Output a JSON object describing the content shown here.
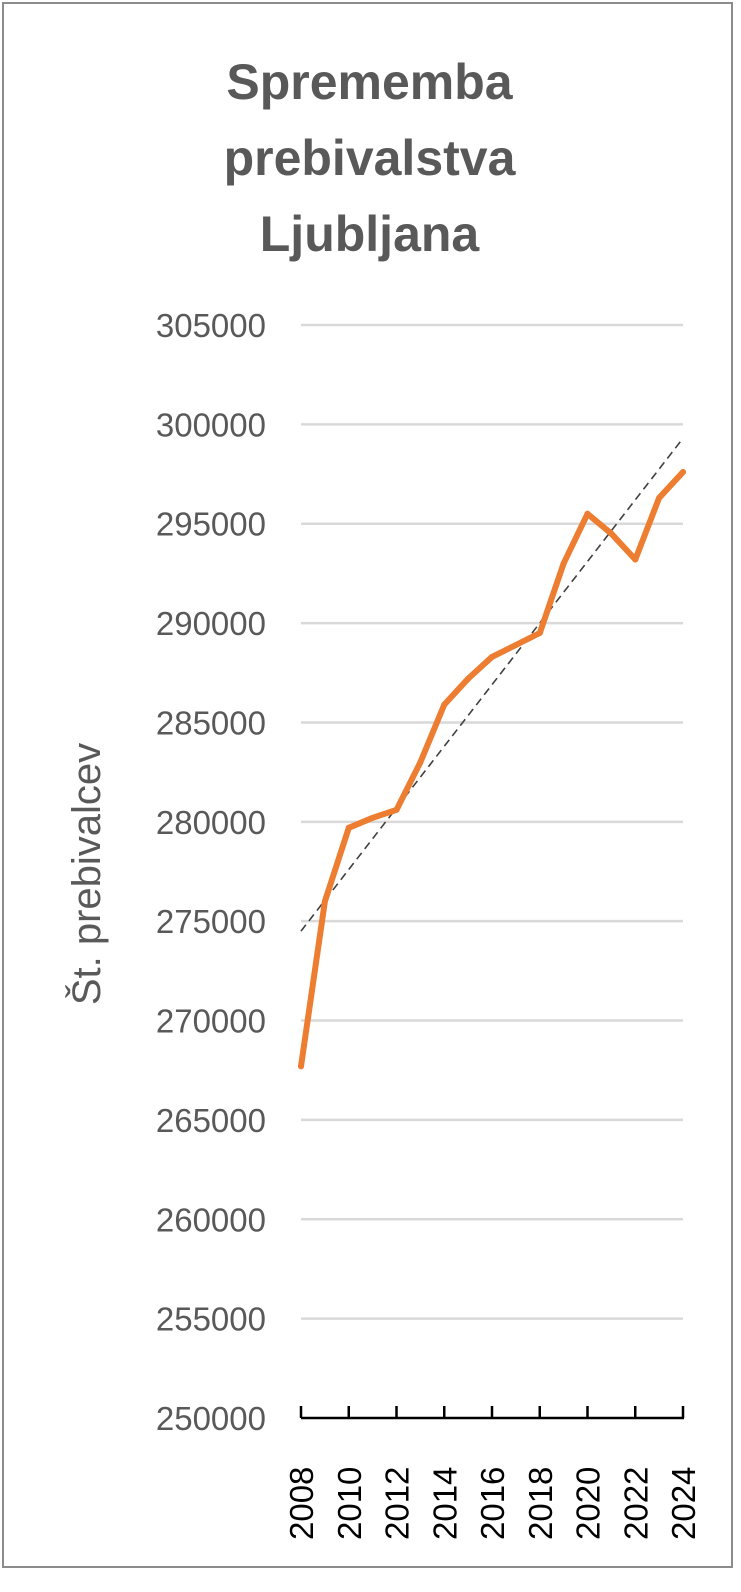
{
  "chart_data": {
    "type": "line",
    "title": "Sprememba\nprebivalstva\nLjubljana",
    "ylabel": "Št. prebivalcev",
    "xlabel": "",
    "ylim": [
      250000,
      305000
    ],
    "yticks": [
      "305000",
      "300000",
      "295000",
      "290000",
      "285000",
      "280000",
      "275000",
      "270000",
      "265000",
      "260000",
      "255000",
      "250000"
    ],
    "xlim": [
      2008,
      2024
    ],
    "xticks": [
      "2008",
      "2010",
      "2012",
      "2014",
      "2016",
      "2018",
      "2020",
      "2022",
      "2024"
    ],
    "grid": true,
    "legend": "none",
    "series": [
      {
        "x": [
          2008,
          2009,
          2010,
          2011,
          2012,
          2013,
          2014,
          2015,
          2016,
          2017,
          2018,
          2019,
          2020,
          2021,
          2022,
          2023,
          2024
        ],
        "values": [
          267700,
          276000,
          279700,
          280200,
          280600,
          283000,
          285900,
          287200,
          288300,
          288900,
          289500,
          293000,
          295500,
          294500,
          293200,
          296300,
          297600
        ],
        "color": "#ED7D31"
      }
    ],
    "trendline": {
      "type": "linear",
      "x": [
        2008,
        2024
      ],
      "values": [
        274500,
        299300
      ],
      "color": "#404040",
      "style": "dashed"
    },
    "colors": {
      "gridline": "#D9D9D9",
      "axis": "#000000",
      "text": "#595959",
      "border": "#8C8C8C"
    }
  }
}
